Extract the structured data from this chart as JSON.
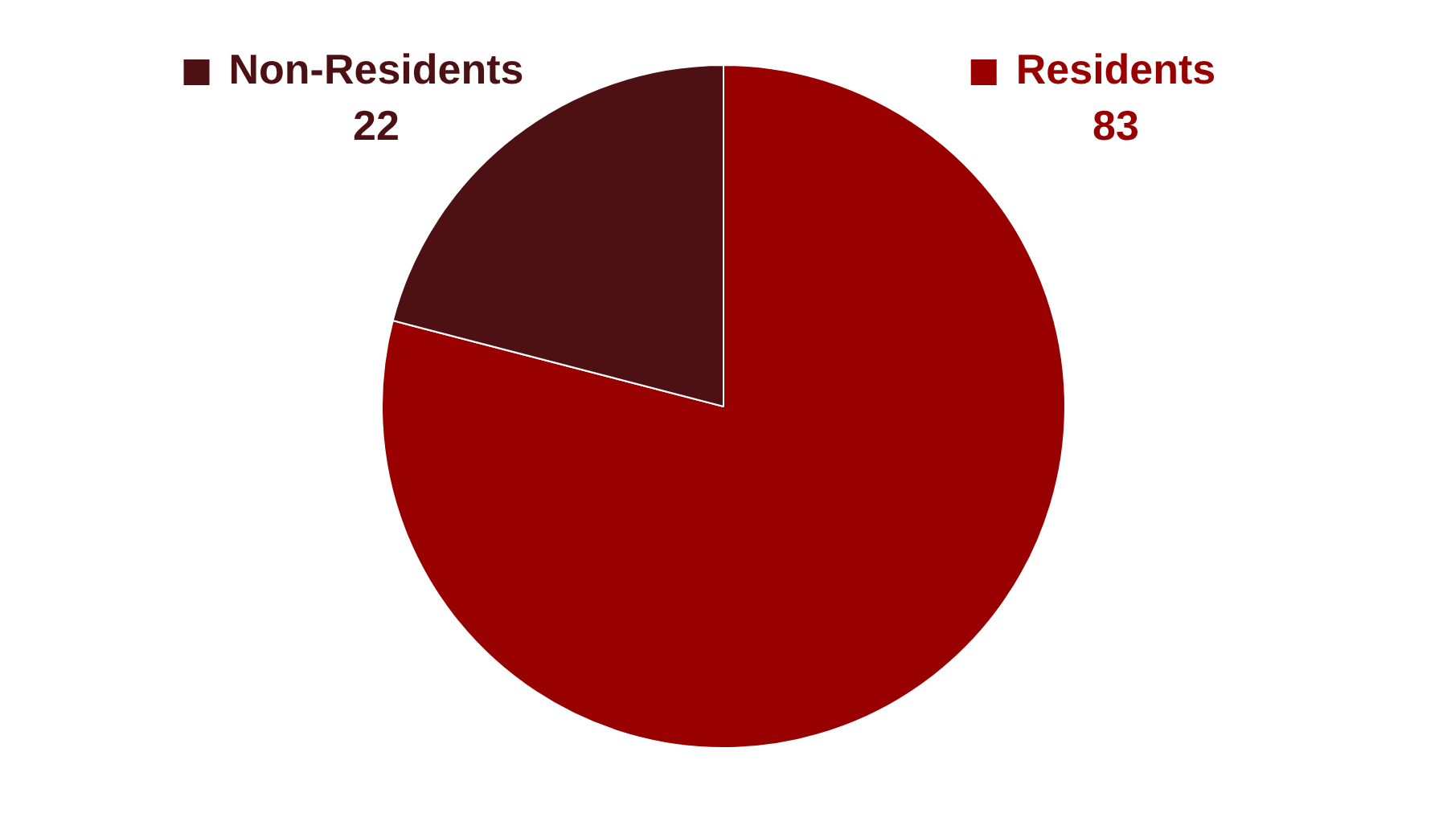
{
  "chart_data": {
    "type": "pie",
    "categories": [
      "Residents",
      "Non-Residents"
    ],
    "values": [
      83,
      22
    ],
    "colors": [
      "#990000",
      "#4d1114"
    ],
    "data_labels": true,
    "legend": "top"
  }
}
